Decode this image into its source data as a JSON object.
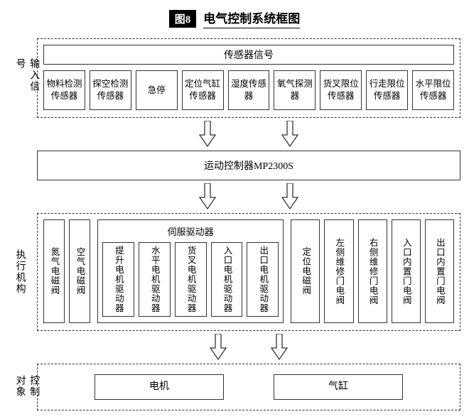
{
  "figure": {
    "badge": "图8",
    "title": "电气控制系统框图"
  },
  "colors": {
    "fg": "#000000",
    "bg": "#ffffff",
    "dash": "#333333"
  },
  "input": {
    "side_label": "输入信号",
    "header": "传感器信号",
    "sensors": [
      "物料检测传感器",
      "探空检测传感器",
      "急停",
      "定位气缸传感器",
      "湿度传感器",
      "氧气探测器",
      "货叉限位传感器",
      "行走限位传感器",
      "水平限位传感器"
    ]
  },
  "controller": {
    "label": "运动控制器MP2300S"
  },
  "exec": {
    "side_label": "执行机构",
    "left_pair": [
      "氮气电磁阀",
      "空气电磁阀"
    ],
    "servo": {
      "header": "伺服驱动器",
      "drivers": [
        "提升电机驱动器",
        "水平电机驱动器",
        "货叉电机驱动器",
        "入口电机驱动器",
        "出口电机驱动器"
      ]
    },
    "valves": [
      "定位电磁阀",
      "左侧维修门电阀",
      "右侧维修门电阀",
      "入口内置门电阀",
      "出口内置门电阀"
    ]
  },
  "targets": {
    "side_label": "控制对象",
    "items": [
      "电机",
      "气缸"
    ]
  }
}
